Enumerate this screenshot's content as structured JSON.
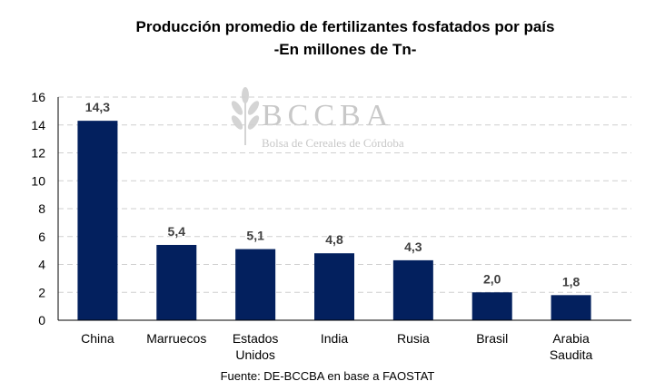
{
  "chart_data": {
    "type": "bar",
    "title": "Producción promedio de fertilizantes fosfatados por país",
    "subtitle": "-En millones de Tn-",
    "categories": [
      [
        "China"
      ],
      [
        "Marruecos"
      ],
      [
        "Estados",
        "Unidos"
      ],
      [
        "India"
      ],
      [
        "Rusia"
      ],
      [
        "Brasil"
      ],
      [
        "Arabia",
        "Saudita"
      ]
    ],
    "values": [
      14.3,
      5.4,
      5.1,
      4.8,
      4.3,
      2.0,
      1.8
    ],
    "data_labels": [
      "14,3",
      "5,4",
      "5,1",
      "4,8",
      "4,3",
      "2,0",
      "1,8"
    ],
    "ylim": [
      0,
      16
    ],
    "yticks": [
      0,
      2,
      4,
      6,
      8,
      10,
      12,
      14,
      16
    ],
    "grid": true,
    "xlabel": "",
    "ylabel": "",
    "bar_color": "#03205e",
    "source": "Fuente: DE-BCCBA en base a FAOSTAT"
  },
  "watermark": {
    "logo": "BCCBA",
    "text": "Bolsa de Cereales de Córdoba"
  }
}
